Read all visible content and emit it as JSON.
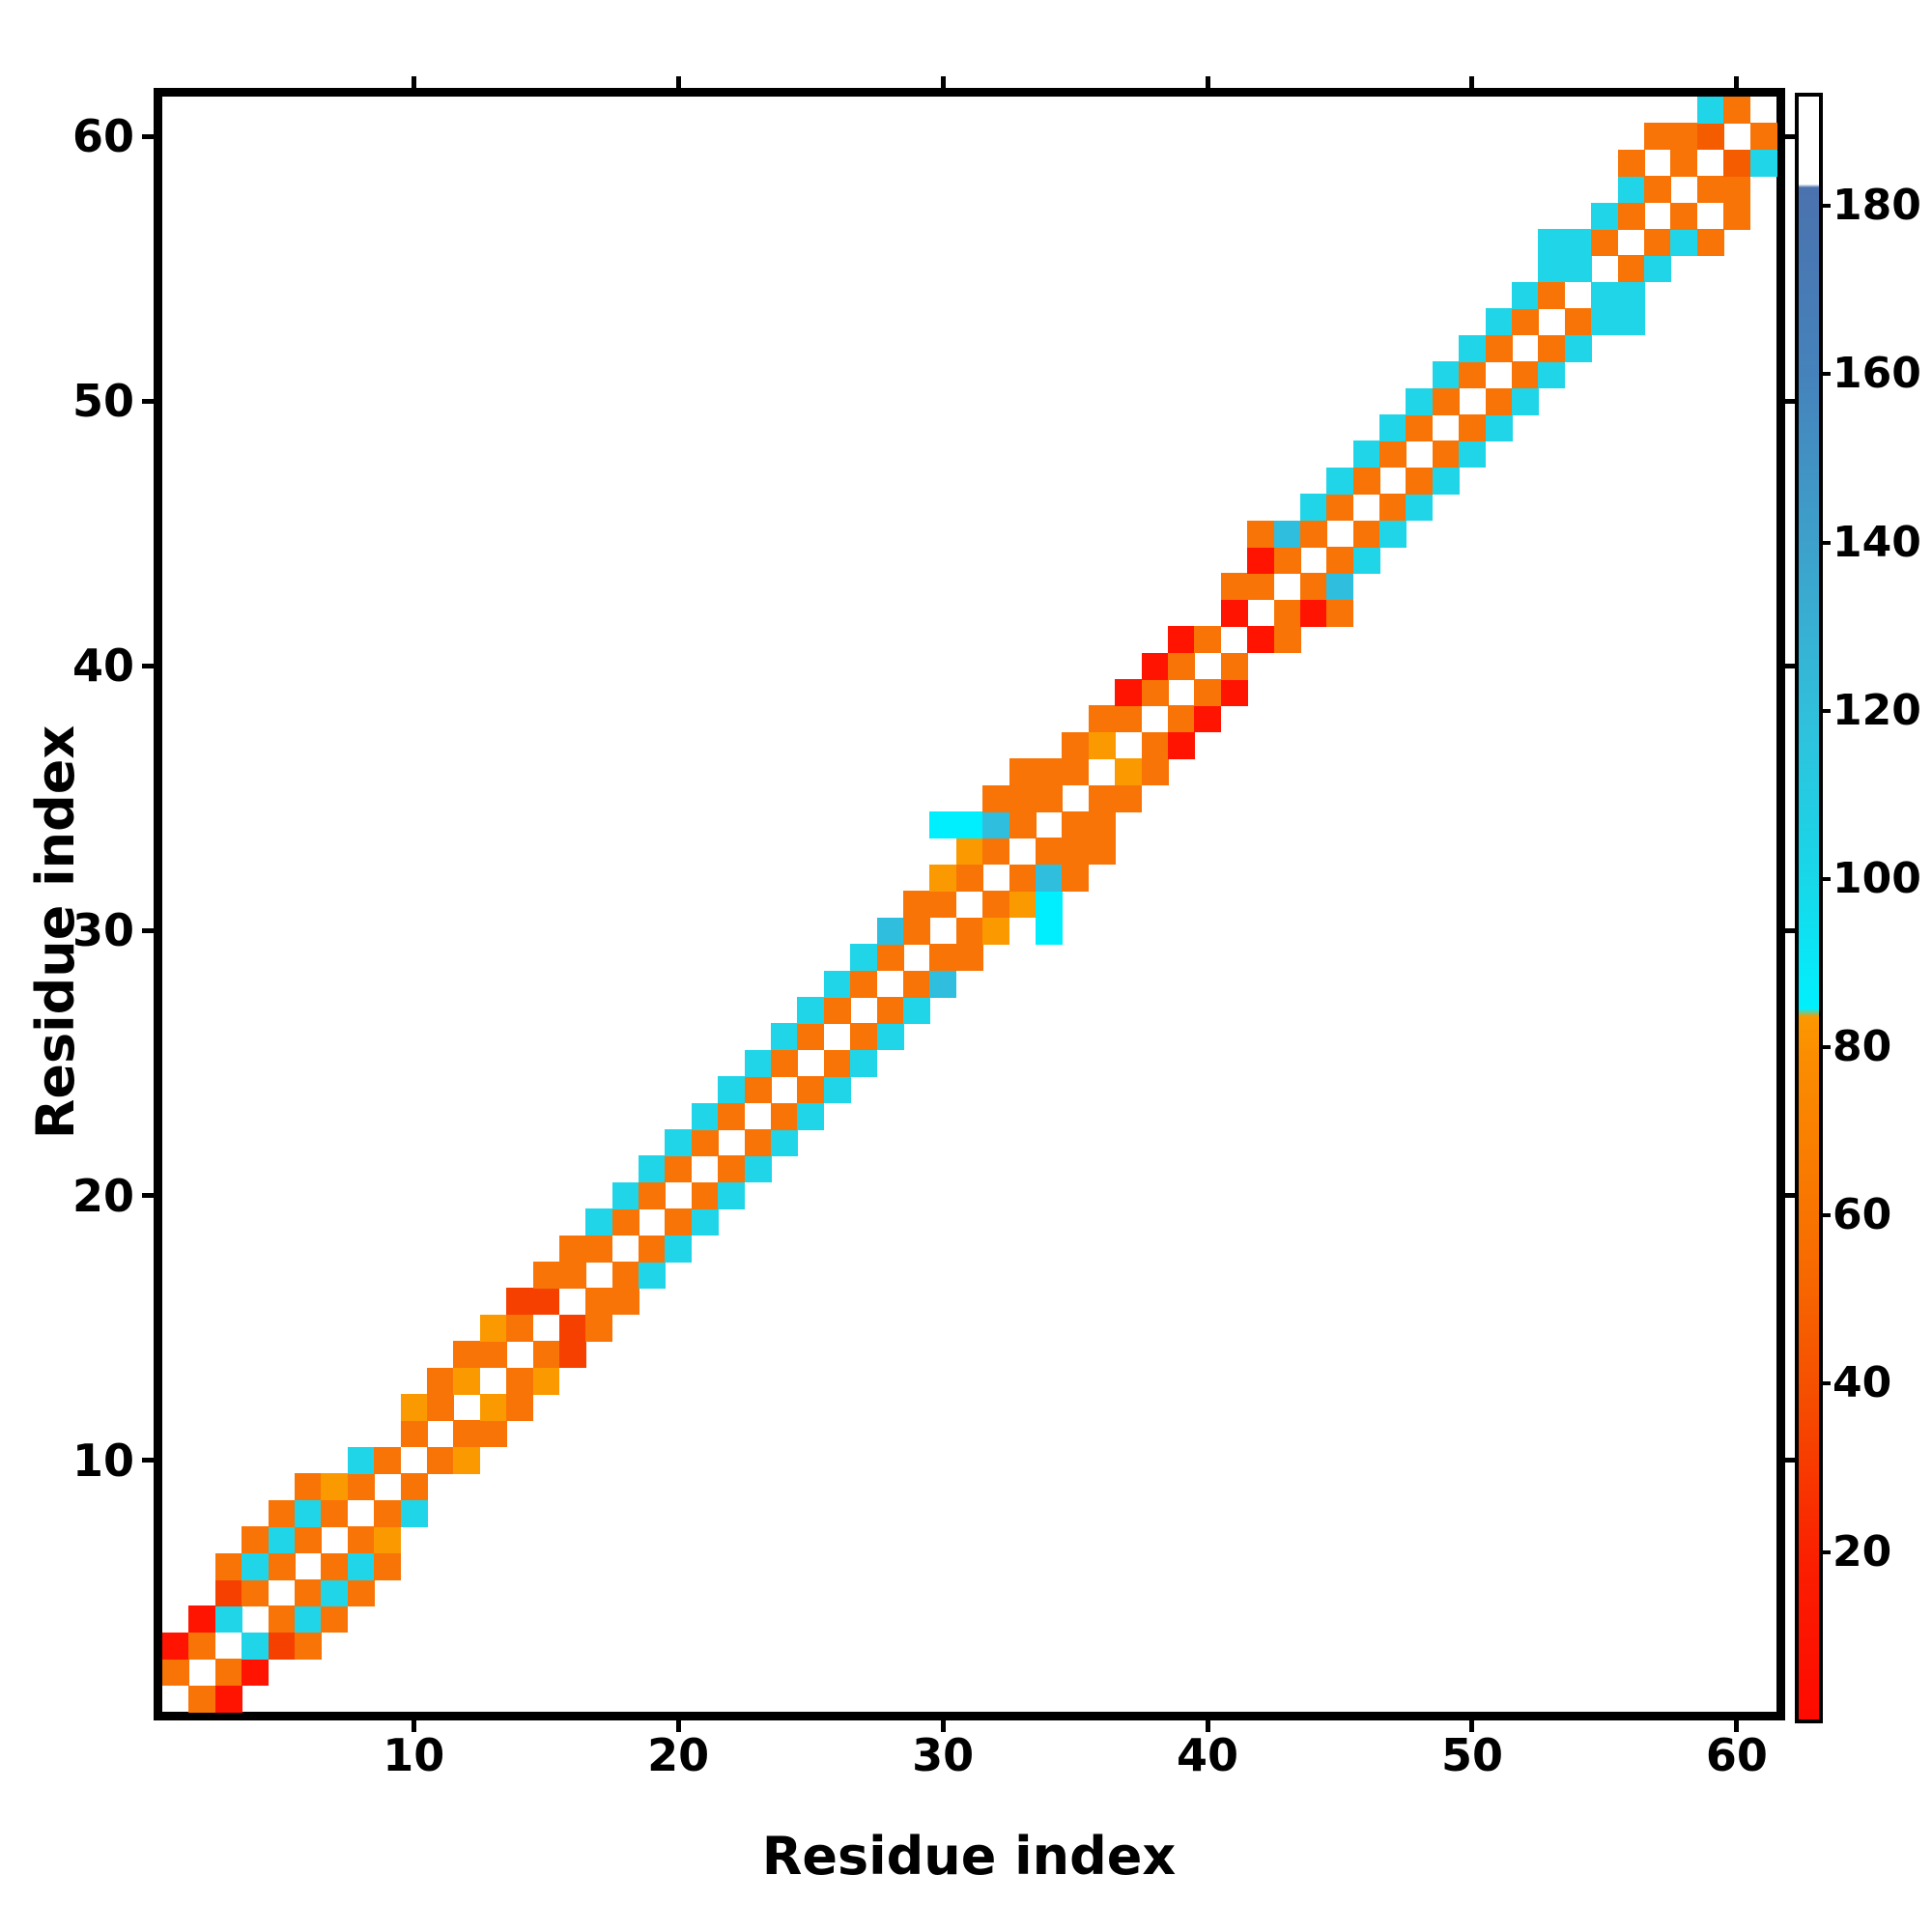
{
  "figure": {
    "background": "#ffffff",
    "x_axis_title": "Residue index",
    "y_axis_title": "Residue index"
  },
  "chart_data": {
    "type": "heatmap",
    "title": "",
    "xlabel": "Residue index",
    "ylabel": "Residue index",
    "n_residues": 61,
    "xlim": [
      0.5,
      61.5
    ],
    "ylim": [
      0.5,
      61.5
    ],
    "axis_tick_values": [
      10,
      20,
      30,
      40,
      50,
      60
    ],
    "grid": false,
    "diagonal_color": "#ffffff",
    "empty_color": "#ffffff",
    "palette": {
      "O": "#f87406",
      "O2": "#f55c00",
      "A": "#fb9a00",
      "R": "#fe1400",
      "R2": "#f54000",
      "C": "#20d5e8",
      "C2": "#2fbedd",
      "CB": "#00efff"
    },
    "palette_values": {
      "O": 68,
      "O2": 55,
      "A": 82,
      "R": 8,
      "R2": 30,
      "C": 100,
      "C2": 120,
      "CB": 88
    },
    "contacts_symmetric": true,
    "contacts": [
      [
        1,
        2,
        "O"
      ],
      [
        1,
        3,
        "R"
      ],
      [
        2,
        3,
        "O"
      ],
      [
        2,
        4,
        "R"
      ],
      [
        3,
        4,
        "C"
      ],
      [
        3,
        5,
        "R2"
      ],
      [
        3,
        6,
        "O"
      ],
      [
        4,
        5,
        "O"
      ],
      [
        4,
        6,
        "C"
      ],
      [
        4,
        7,
        "O"
      ],
      [
        5,
        6,
        "O"
      ],
      [
        5,
        7,
        "C"
      ],
      [
        5,
        8,
        "O"
      ],
      [
        6,
        7,
        "O"
      ],
      [
        6,
        8,
        "C"
      ],
      [
        6,
        9,
        "O"
      ],
      [
        7,
        8,
        "O"
      ],
      [
        7,
        9,
        "A"
      ],
      [
        8,
        9,
        "O"
      ],
      [
        8,
        10,
        "C"
      ],
      [
        9,
        10,
        "O"
      ],
      [
        10,
        11,
        "O"
      ],
      [
        10,
        12,
        "A"
      ],
      [
        11,
        12,
        "O"
      ],
      [
        11,
        13,
        "O"
      ],
      [
        12,
        13,
        "A"
      ],
      [
        12,
        14,
        "O"
      ],
      [
        13,
        14,
        "O"
      ],
      [
        13,
        15,
        "A"
      ],
      [
        14,
        15,
        "O"
      ],
      [
        14,
        16,
        "R2"
      ],
      [
        15,
        16,
        "R2"
      ],
      [
        15,
        17,
        "O"
      ],
      [
        16,
        17,
        "O"
      ],
      [
        16,
        18,
        "O"
      ],
      [
        17,
        18,
        "O"
      ],
      [
        17,
        19,
        "C"
      ],
      [
        18,
        19,
        "O"
      ],
      [
        18,
        20,
        "C"
      ],
      [
        19,
        20,
        "O"
      ],
      [
        19,
        21,
        "C"
      ],
      [
        20,
        21,
        "O"
      ],
      [
        20,
        22,
        "C"
      ],
      [
        21,
        22,
        "O"
      ],
      [
        21,
        23,
        "C"
      ],
      [
        22,
        23,
        "O"
      ],
      [
        22,
        24,
        "C"
      ],
      [
        23,
        24,
        "O"
      ],
      [
        23,
        25,
        "C"
      ],
      [
        24,
        25,
        "O"
      ],
      [
        24,
        26,
        "C"
      ],
      [
        25,
        26,
        "O"
      ],
      [
        25,
        27,
        "C"
      ],
      [
        26,
        27,
        "O"
      ],
      [
        26,
        28,
        "C"
      ],
      [
        27,
        28,
        "O"
      ],
      [
        27,
        29,
        "C"
      ],
      [
        28,
        29,
        "O"
      ],
      [
        28,
        30,
        "C2"
      ],
      [
        29,
        30,
        "O"
      ],
      [
        29,
        31,
        "O"
      ],
      [
        30,
        31,
        "O"
      ],
      [
        30,
        32,
        "A"
      ],
      [
        30,
        34,
        "CB"
      ],
      [
        31,
        32,
        "O"
      ],
      [
        31,
        33,
        "A"
      ],
      [
        31,
        34,
        "CB"
      ],
      [
        32,
        33,
        "O"
      ],
      [
        32,
        34,
        "C2"
      ],
      [
        32,
        35,
        "O"
      ],
      [
        33,
        34,
        "O"
      ],
      [
        33,
        35,
        "O"
      ],
      [
        33,
        36,
        "O"
      ],
      [
        34,
        35,
        "O"
      ],
      [
        34,
        36,
        "O"
      ],
      [
        35,
        36,
        "O"
      ],
      [
        35,
        37,
        "O"
      ],
      [
        36,
        37,
        "A"
      ],
      [
        36,
        38,
        "O"
      ],
      [
        37,
        38,
        "O"
      ],
      [
        37,
        39,
        "R"
      ],
      [
        38,
        39,
        "O"
      ],
      [
        38,
        40,
        "R"
      ],
      [
        39,
        40,
        "O"
      ],
      [
        39,
        41,
        "R"
      ],
      [
        40,
        41,
        "O"
      ],
      [
        41,
        42,
        "R"
      ],
      [
        41,
        43,
        "O"
      ],
      [
        42,
        43,
        "O"
      ],
      [
        42,
        44,
        "R"
      ],
      [
        42,
        45,
        "O"
      ],
      [
        43,
        44,
        "O"
      ],
      [
        43,
        45,
        "C2"
      ],
      [
        44,
        45,
        "O"
      ],
      [
        44,
        46,
        "C"
      ],
      [
        45,
        46,
        "O"
      ],
      [
        45,
        47,
        "C"
      ],
      [
        46,
        47,
        "O"
      ],
      [
        46,
        48,
        "C"
      ],
      [
        47,
        48,
        "O"
      ],
      [
        47,
        49,
        "C"
      ],
      [
        48,
        49,
        "O"
      ],
      [
        48,
        50,
        "C"
      ],
      [
        49,
        50,
        "O"
      ],
      [
        49,
        51,
        "C"
      ],
      [
        50,
        51,
        "O"
      ],
      [
        50,
        52,
        "C"
      ],
      [
        51,
        52,
        "O"
      ],
      [
        51,
        53,
        "C"
      ],
      [
        52,
        53,
        "O"
      ],
      [
        52,
        54,
        "C"
      ],
      [
        53,
        54,
        "O"
      ],
      [
        53,
        55,
        "C"
      ],
      [
        53,
        56,
        "C"
      ],
      [
        54,
        55,
        "C"
      ],
      [
        54,
        56,
        "C"
      ],
      [
        55,
        56,
        "O"
      ],
      [
        55,
        57,
        "C"
      ],
      [
        56,
        57,
        "O"
      ],
      [
        56,
        58,
        "C"
      ],
      [
        56,
        59,
        "O"
      ],
      [
        57,
        58,
        "O"
      ],
      [
        57,
        60,
        "O"
      ],
      [
        58,
        59,
        "O"
      ],
      [
        58,
        60,
        "O"
      ],
      [
        59,
        60,
        "O2"
      ],
      [
        59,
        61,
        "C"
      ],
      [
        60,
        61,
        "O"
      ]
    ],
    "colorbar": {
      "position": "right",
      "tick_values": [
        20,
        40,
        60,
        80,
        100,
        120,
        140,
        160,
        180
      ],
      "value_range": [
        1,
        193
      ],
      "gradient_stops_top_to_bottom": [
        {
          "f": 0.0,
          "color": "#ffffff"
        },
        {
          "f": 0.054,
          "color": "#ffffff"
        },
        {
          "f": 0.056,
          "color": "#4a72ae"
        },
        {
          "f": 0.175,
          "color": "#4583bc"
        },
        {
          "f": 0.279,
          "color": "#3da2cb"
        },
        {
          "f": 0.384,
          "color": "#30c0dc"
        },
        {
          "f": 0.488,
          "color": "#16d9ea"
        },
        {
          "f": 0.562,
          "color": "#00f0fe"
        },
        {
          "f": 0.567,
          "color": "#fc9800"
        },
        {
          "f": 0.592,
          "color": "#fb8d00"
        },
        {
          "f": 0.697,
          "color": "#f87200"
        },
        {
          "f": 0.801,
          "color": "#f54e00"
        },
        {
          "f": 0.906,
          "color": "#fb1e00"
        },
        {
          "f": 1.0,
          "color": "#fe0a00"
        }
      ]
    }
  }
}
